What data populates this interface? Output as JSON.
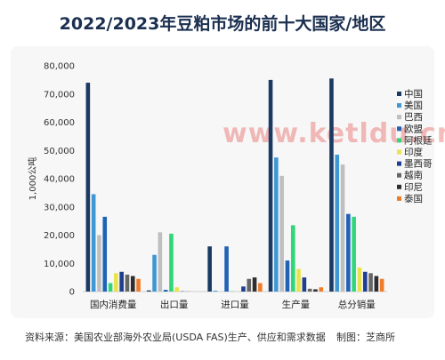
{
  "title": "2022/2023年豆粕市场的前十大国家/地区",
  "watermark": "www.ketldu.cn",
  "footer": {
    "source": "资料来源：美国农业部海外农业局(USDA FAS)生产、供应和需求数据",
    "credit": "制图：芝商所"
  },
  "chart_data": {
    "type": "bar",
    "ylabel": "1,000公吨",
    "ylim": [
      0,
      80000
    ],
    "yticks": [
      "0",
      "10,000",
      "20,000",
      "30,000",
      "40,000",
      "50,000",
      "60,000",
      "70,000",
      "80,000"
    ],
    "yticks_values": [
      0,
      10000,
      20000,
      30000,
      40000,
      50000,
      60000,
      70000,
      80000
    ],
    "legend_position": "right",
    "categories": [
      "国内消费量",
      "出口量",
      "进口量",
      "生产量",
      "总分销量"
    ],
    "series": [
      {
        "name": "中国",
        "color": "#1a3a63",
        "values": [
          74000,
          400,
          16000,
          75000,
          75500
        ]
      },
      {
        "name": "美国",
        "color": "#3f97d4",
        "values": [
          34500,
          13000,
          300,
          47500,
          48500
        ]
      },
      {
        "name": "巴西",
        "color": "#bfbfbf",
        "values": [
          20000,
          21000,
          0,
          41000,
          45000
        ]
      },
      {
        "name": "欧盟",
        "color": "#1f63b5",
        "values": [
          26500,
          600,
          16000,
          11000,
          27500
        ]
      },
      {
        "name": "阿根廷",
        "color": "#2fd67a",
        "values": [
          3000,
          20500,
          100,
          23500,
          26500
        ]
      },
      {
        "name": "印度",
        "color": "#e8e24b",
        "values": [
          6500,
          1500,
          50,
          8000,
          8500
        ]
      },
      {
        "name": "墨西哥",
        "color": "#1f3e8f",
        "values": [
          7000,
          100,
          1800,
          5000,
          7000
        ]
      },
      {
        "name": "越南",
        "color": "#666666",
        "values": [
          6000,
          50,
          4500,
          1000,
          6500
        ]
      },
      {
        "name": "印尼",
        "color": "#2e2e2e",
        "values": [
          5500,
          0,
          5000,
          800,
          5500
        ]
      },
      {
        "name": "泰国",
        "color": "#f07c2a",
        "values": [
          4500,
          0,
          3000,
          1500,
          4500
        ]
      }
    ]
  }
}
